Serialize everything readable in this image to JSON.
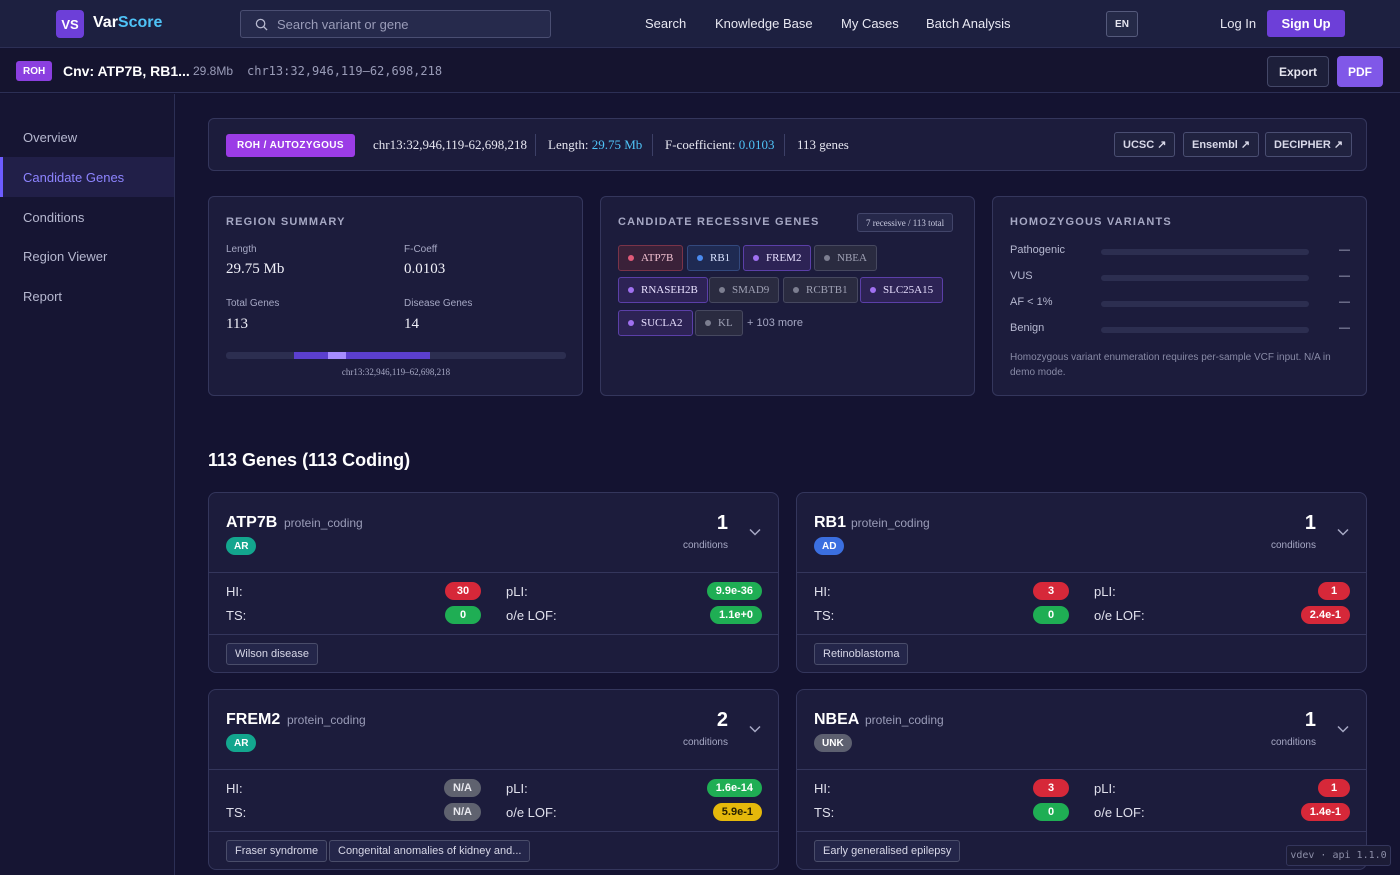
{
  "nav": {
    "logo_mark": "VS",
    "logo_a": "Var",
    "logo_b": "Score",
    "search_placeholder": "Search variant or gene",
    "links": [
      "Search",
      "Knowledge Base",
      "My Cases",
      "Batch Analysis"
    ],
    "lang": "EN",
    "login": "Log In",
    "signup": "Sign Up"
  },
  "subheader": {
    "badge": "ROH",
    "title": "Cnv: ATP7B, RB1...",
    "size": "29.8Mb",
    "coord": "chr13:32,946,119–62,698,218",
    "export": "Export",
    "pdf": "PDF"
  },
  "sidebar": {
    "items": [
      "Overview",
      "Candidate Genes",
      "Conditions",
      "Region Viewer",
      "Report"
    ],
    "active": "Candidate Genes"
  },
  "roh": {
    "badge": "ROH / AUTOZYGOUS",
    "coord": "chr13:32,946,119-62,698,218",
    "length_label": "Length:",
    "length_value": "29.75 Mb",
    "fcoef_label": "F-coefficient:",
    "fcoef_value": "0.0103",
    "genes": "113 genes",
    "links": [
      "UCSC ↗",
      "Ensembl ↗",
      "DECIPHER ↗"
    ]
  },
  "region_summary": {
    "title": "REGION SUMMARY",
    "length_label": "Length",
    "length_value": "29.75 Mb",
    "fcoeff_label": "F-Coeff",
    "fcoeff_value": "0.0103",
    "total_genes_label": "Total Genes",
    "total_genes_value": "113",
    "disease_genes_label": "Disease Genes",
    "disease_genes_value": "14",
    "bar_label": "chr13:32,946,119–62,698,218"
  },
  "candidate": {
    "title": "CANDIDATE RECESSIVE GENES",
    "count": "7 recessive / 113 total",
    "chips": [
      {
        "name": "ATP7B",
        "style": "red"
      },
      {
        "name": "RB1",
        "style": "blue"
      },
      {
        "name": "FREM2",
        "style": "purple"
      },
      {
        "name": "NBEA",
        "style": "gray"
      },
      {
        "name": "RNASEH2B",
        "style": "purple"
      },
      {
        "name": "SMAD9",
        "style": "gray"
      },
      {
        "name": "RCBTB1",
        "style": "gray"
      },
      {
        "name": "SLC25A15",
        "style": "purple"
      },
      {
        "name": "SUCLA2",
        "style": "purple"
      },
      {
        "name": "KL",
        "style": "gray"
      }
    ],
    "more": "+ 103 more"
  },
  "homozygous": {
    "title": "HOMOZYGOUS VARIANTS",
    "rows": [
      {
        "label": "Pathogenic",
        "value": "—"
      },
      {
        "label": "VUS",
        "value": "—"
      },
      {
        "label": "AF < 1%",
        "value": "—"
      },
      {
        "label": "Benign",
        "value": "—"
      }
    ],
    "note": "Homozygous variant enumeration requires per-sample VCF input. N/A in demo mode."
  },
  "genes_title": "113 Genes (113 Coding)",
  "gene_cards": [
    {
      "name": "ATP7B",
      "type": "protein_coding",
      "inheritance": "AR",
      "inh_style": "ar",
      "count": "1",
      "count_label": "conditions",
      "hi": "30",
      "hi_style": "red",
      "ts": "0",
      "ts_style": "green",
      "pli": "9.9e-36",
      "pli_style": "green",
      "oe": "1.1e+0",
      "oe_style": "green",
      "conditions": [
        "Wilson disease"
      ]
    },
    {
      "name": "RB1",
      "type": "protein_coding",
      "inheritance": "AD",
      "inh_style": "ad",
      "count": "1",
      "count_label": "conditions",
      "hi": "3",
      "hi_style": "red",
      "ts": "0",
      "ts_style": "green",
      "pli": "1",
      "pli_style": "red",
      "oe": "2.4e-1",
      "oe_style": "red",
      "conditions": [
        "Retinoblastoma"
      ]
    },
    {
      "name": "FREM2",
      "type": "protein_coding",
      "inheritance": "AR",
      "inh_style": "ar",
      "count": "2",
      "count_label": "conditions",
      "hi": "N/A",
      "hi_style": "gray",
      "ts": "N/A",
      "ts_style": "gray",
      "pli": "1.6e-14",
      "pli_style": "green",
      "oe": "5.9e-1",
      "oe_style": "yellow",
      "conditions": [
        "Fraser syndrome",
        "Congenital anomalies of kidney and..."
      ]
    },
    {
      "name": "NBEA",
      "type": "protein_coding",
      "inheritance": "UNK",
      "inh_style": "unk",
      "count": "1",
      "count_label": "conditions",
      "hi": "3",
      "hi_style": "red",
      "ts": "0",
      "ts_style": "green",
      "pli": "1",
      "pli_style": "red",
      "oe": "1.4e-1",
      "oe_style": "red",
      "conditions": [
        "Early generalised epilepsy"
      ]
    }
  ],
  "metric_labels": {
    "hi": "HI:",
    "ts": "TS:",
    "pli": "pLI:",
    "oe": "o/e LOF:"
  },
  "version": "vdev · api 1.1.0"
}
